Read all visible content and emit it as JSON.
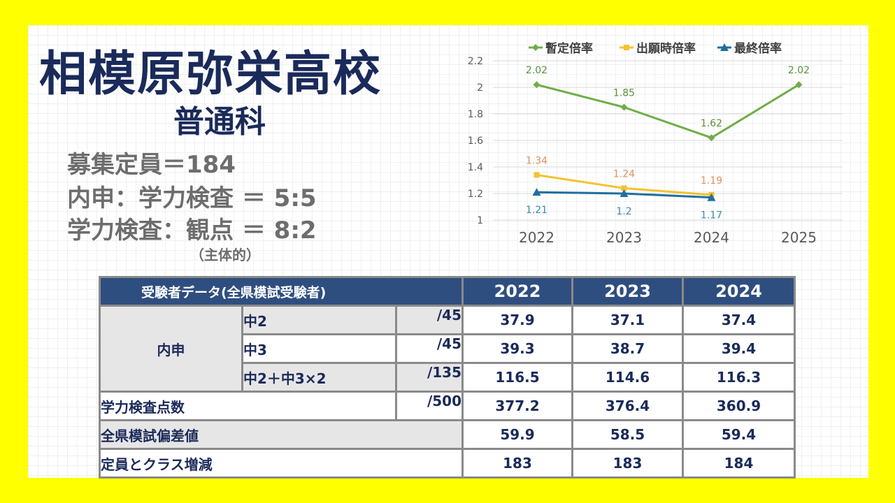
{
  "school": {
    "name": "相模原弥栄高校",
    "course": "普通科"
  },
  "info": {
    "line1": "募集定員＝184",
    "line2": "内申：学力検査 ＝ 5:5",
    "line3": "学力検査：観点 ＝ 8:2",
    "note": "（主体的）"
  },
  "table": {
    "header_label": "受験者データ(全県模試受験者)",
    "years": [
      "2022",
      "2023",
      "2024"
    ],
    "naishin_label": "内申",
    "rows": [
      {
        "label": "中2",
        "max": "/45",
        "values": [
          "37.9",
          "37.1",
          "37.4"
        ]
      },
      {
        "label": "中3",
        "max": "/45",
        "values": [
          "39.3",
          "38.7",
          "39.4"
        ]
      },
      {
        "label": "中2＋中3×2",
        "max": "/135",
        "values": [
          "116.5",
          "114.6",
          "116.3"
        ]
      },
      {
        "label": "学力検査点数",
        "max": "/500",
        "values": [
          "377.2",
          "376.4",
          "360.9"
        ]
      },
      {
        "label": "全県模試偏差値",
        "values": [
          "59.9",
          "58.5",
          "59.4"
        ]
      },
      {
        "label": "定員とクラス増減",
        "values": [
          "183",
          "183",
          "184"
        ]
      }
    ]
  },
  "chart_data": {
    "type": "line",
    "categories": [
      "2022",
      "2023",
      "2024",
      "2025"
    ],
    "ylim": [
      1,
      2.2
    ],
    "yticks": [
      "1",
      "1.2",
      "1.4",
      "1.6",
      "1.8",
      "2",
      "2.2"
    ],
    "grid": true,
    "legend_position": "top",
    "series": [
      {
        "name": "暫定倍率",
        "values": [
          2.02,
          1.85,
          1.62,
          2.02
        ],
        "labels": [
          "2.02",
          "1.85",
          "1.62",
          "2.02"
        ],
        "color": "#70ad47",
        "label_color": "#5a8f3a",
        "marker": "diamond",
        "label_pos": "above"
      },
      {
        "name": "出願時倍率",
        "values": [
          1.34,
          1.24,
          1.19,
          null
        ],
        "labels": [
          "1.34",
          "1.24",
          "1.19",
          ""
        ],
        "color": "#f4c230",
        "label_color": "#e0935a",
        "marker": "square",
        "label_pos": "above"
      },
      {
        "name": "最終倍率",
        "values": [
          1.21,
          1.2,
          1.17,
          null
        ],
        "labels": [
          "1.21",
          "1.2",
          "1.17",
          ""
        ],
        "color": "#1f6f9f",
        "label_color": "#3a8ab0",
        "marker": "triangle",
        "label_pos": "below"
      }
    ]
  }
}
